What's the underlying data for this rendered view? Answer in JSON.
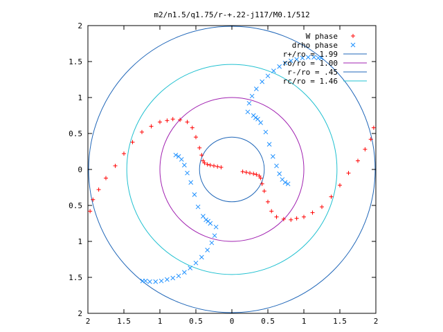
{
  "chart_data": {
    "type": "scatter",
    "title": "m2/n1.5/q1.75/r-+.22-j117/M0.1/512",
    "xlabel": "",
    "ylabel": "",
    "xlim": [
      -2,
      2
    ],
    "ylim": [
      -2,
      2
    ],
    "x_tick_labels": [
      "2",
      "1.5",
      "1",
      "0.5",
      "0",
      "0.5",
      "1",
      "1.5",
      "2"
    ],
    "y_tick_labels": [
      "2",
      "1.5",
      "1",
      "0.5",
      "0",
      "0.5",
      "1",
      "1.5",
      "2"
    ],
    "grid": false,
    "legend_placement": "top-right",
    "legend": [
      {
        "label": "W phase",
        "marker": "plus",
        "color": "#ff0000"
      },
      {
        "label": "drho phase",
        "marker": "x",
        "color": "#1e90ff"
      },
      {
        "label": "r+/ro = 1.99",
        "marker": "line",
        "color": "#1f66b8"
      },
      {
        "label": "ro/ro = 1.00",
        "marker": "line",
        "color": "#a020b0"
      },
      {
        "label": "r-/ro = .45",
        "marker": "line",
        "color": "#1f66b8"
      },
      {
        "label": "rc/ro = 1.46",
        "marker": "line",
        "color": "#20c0d0"
      }
    ],
    "circles": [
      {
        "r": 1.99,
        "color": "#1f66b8"
      },
      {
        "r": 1.0,
        "color": "#a020b0"
      },
      {
        "r": 0.45,
        "color": "#1f66b8"
      },
      {
        "r": 1.46,
        "color": "#20c0d0"
      }
    ],
    "series": [
      {
        "name": "W phase",
        "color": "#ff0000",
        "x": [
          -1.97,
          -1.93,
          -1.85,
          -1.75,
          -1.62,
          -1.5,
          -1.38,
          -1.25,
          -1.12,
          -1.0,
          -0.9,
          -0.82,
          -0.72,
          -0.62,
          -0.55,
          -0.5,
          -0.45,
          -0.42,
          -0.4,
          -0.38,
          -0.34,
          -0.3,
          -0.25,
          -0.2,
          -0.15,
          1.97,
          1.93,
          1.85,
          1.75,
          1.62,
          1.5,
          1.38,
          1.25,
          1.12,
          1.0,
          0.9,
          0.82,
          0.72,
          0.62,
          0.55,
          0.5,
          0.45,
          0.42,
          0.4,
          0.38,
          0.34,
          0.3,
          0.25,
          0.2,
          0.15
        ],
        "y": [
          -0.58,
          -0.42,
          -0.28,
          -0.12,
          0.05,
          0.22,
          0.38,
          0.52,
          0.6,
          0.66,
          0.68,
          0.7,
          0.69,
          0.66,
          0.58,
          0.45,
          0.3,
          0.2,
          0.12,
          0.09,
          0.07,
          0.06,
          0.05,
          0.04,
          0.03,
          0.58,
          0.42,
          0.28,
          0.12,
          -0.05,
          -0.22,
          -0.38,
          -0.52,
          -0.6,
          -0.66,
          -0.68,
          -0.7,
          -0.69,
          -0.66,
          -0.58,
          -0.45,
          -0.3,
          -0.2,
          -0.12,
          -0.09,
          -0.07,
          -0.06,
          -0.05,
          -0.04,
          -0.03
        ]
      },
      {
        "name": "drho phase",
        "color": "#1e90ff",
        "x": [
          0.22,
          0.24,
          0.28,
          0.34,
          0.42,
          0.5,
          0.58,
          0.66,
          0.74,
          0.82,
          0.9,
          0.98,
          1.06,
          1.14,
          1.2,
          1.24,
          0.3,
          0.33,
          0.36,
          0.4,
          0.47,
          0.52,
          0.57,
          0.62,
          0.66,
          0.7,
          0.74,
          0.78,
          -0.22,
          -0.24,
          -0.28,
          -0.34,
          -0.42,
          -0.5,
          -0.58,
          -0.66,
          -0.74,
          -0.82,
          -0.9,
          -0.98,
          -1.06,
          -1.14,
          -1.2,
          -1.24,
          -0.3,
          -0.33,
          -0.36,
          -0.4,
          -0.47,
          -0.52,
          -0.57,
          -0.62,
          -0.66,
          -0.7,
          -0.74,
          -0.78
        ],
        "y": [
          0.8,
          0.92,
          1.02,
          1.12,
          1.22,
          1.3,
          1.37,
          1.43,
          1.48,
          1.51,
          1.53,
          1.55,
          1.56,
          1.56,
          1.55,
          1.55,
          0.75,
          0.72,
          0.7,
          0.65,
          0.52,
          0.35,
          0.18,
          0.05,
          -0.06,
          -0.14,
          -0.18,
          -0.2,
          -0.8,
          -0.92,
          -1.02,
          -1.12,
          -1.22,
          -1.3,
          -1.37,
          -1.43,
          -1.48,
          -1.51,
          -1.53,
          -1.55,
          -1.56,
          -1.56,
          -1.55,
          -1.55,
          -0.75,
          -0.72,
          -0.7,
          -0.65,
          -0.52,
          -0.35,
          -0.18,
          -0.05,
          0.06,
          0.14,
          0.18,
          0.2
        ]
      }
    ]
  }
}
